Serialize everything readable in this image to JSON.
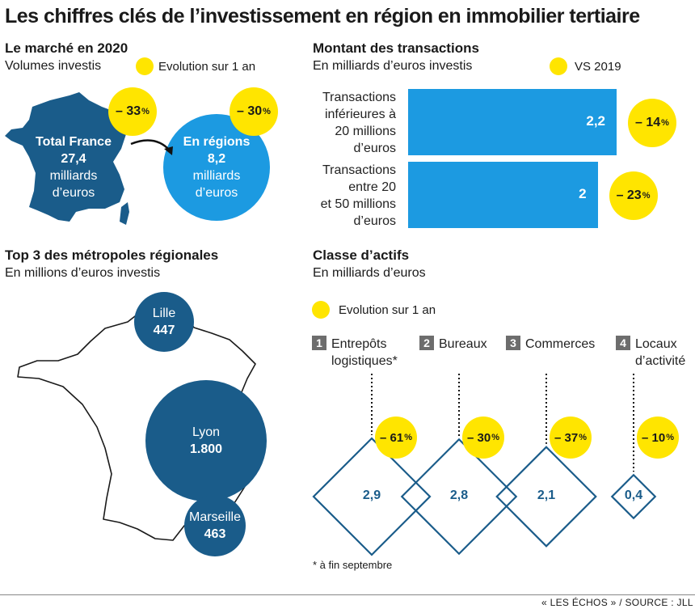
{
  "title": "Les chiffres clés de l’investissement en région en immobilier tertiaire",
  "market": {
    "title": "Le marché en 2020",
    "subtitle": "Volumes investis",
    "legend": "Evolution sur 1 an",
    "france_lines": [
      "Total France",
      "27,4",
      "milliards",
      "d’euros"
    ],
    "france_change": "– 33",
    "regions_lines": [
      "En régions",
      "8,2",
      "milliards",
      "d’euros"
    ],
    "regions_change": "– 30",
    "pct": "%"
  },
  "transactions": {
    "title": "Montant des transactions",
    "subtitle": "En milliards d’euros investis",
    "legend": "VS 2019"
  },
  "metropoles": {
    "title": "Top 3 des métropoles régionales",
    "subtitle": "En millions d’euros investis"
  },
  "assets": {
    "title": "Classe d’actifs",
    "subtitle": "En milliards d’euros",
    "legend": "Evolution sur 1 an",
    "footnote": "* à fin septembre"
  },
  "source": "« LES ÉCHOS » / SOURCE : JLL",
  "colors": {
    "accent_yellow": "#ffe500",
    "bar_blue": "#1c9ae1",
    "map_navy": "#1a5c8a",
    "region_blue": "#1c9ae1"
  },
  "chart_data": [
    {
      "type": "bar",
      "orientation": "horizontal",
      "categories": [
        "Transactions inférieures à 20 millions d’euros",
        "Transactions entre 20 et 50 millions d’euros"
      ],
      "category_lines": [
        [
          "Transactions",
          "inférieures à",
          "20 millions",
          "d’euros"
        ],
        [
          "Transactions",
          "entre 20",
          "et 50 millions",
          "d’euros"
        ]
      ],
      "values": [
        2.2,
        2.0
      ],
      "value_labels": [
        "2,2",
        "2"
      ],
      "changes": [
        "– 14",
        "– 23"
      ],
      "xlim": [
        0,
        2.2
      ]
    },
    {
      "type": "scatter",
      "categories": [
        "Lille",
        "Lyon",
        "Marseille"
      ],
      "values": [
        447,
        1800,
        463
      ],
      "value_labels": [
        "447",
        "1.800",
        "463"
      ]
    },
    {
      "type": "scatter",
      "categories": [
        "Entrepôts logistiques*",
        "Bureaux",
        "Commerces",
        "Locaux d’activité"
      ],
      "category_numbers": [
        "1",
        "2",
        "3",
        "4"
      ],
      "category_lines": [
        [
          "Entrepôts",
          "logistiques*"
        ],
        [
          "Bureaux"
        ],
        [
          "Commerces"
        ],
        [
          "Locaux",
          "d’activité"
        ]
      ],
      "values": [
        2.9,
        2.8,
        2.1,
        0.4
      ],
      "value_labels": [
        "2,9",
        "2,8",
        "2,1",
        "0,4"
      ],
      "changes": [
        "– 61",
        "– 30",
        "– 37",
        "– 10"
      ]
    }
  ]
}
